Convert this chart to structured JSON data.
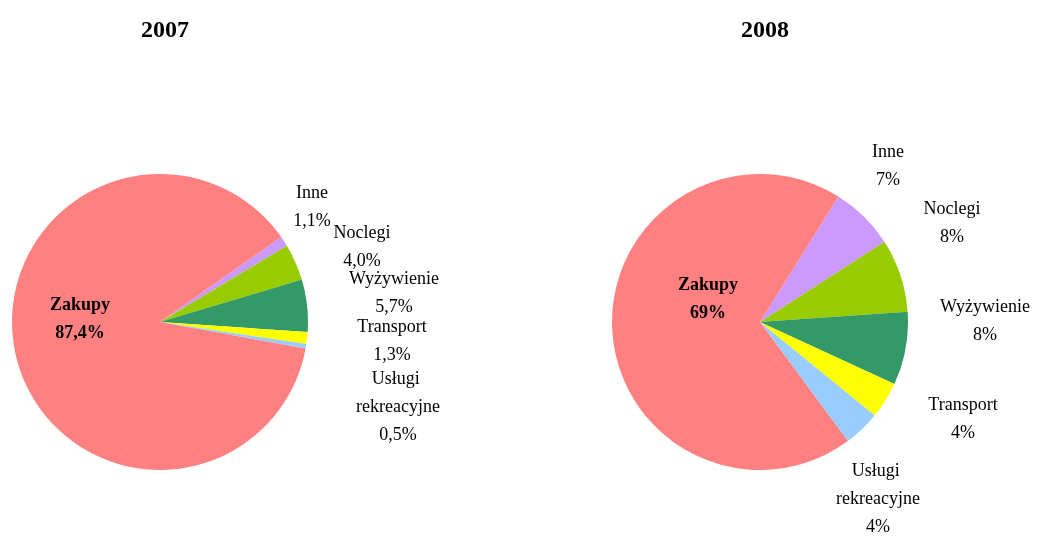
{
  "chart_data": [
    {
      "type": "pie",
      "title": "2007",
      "categories": [
        "Inne",
        "Noclegi",
        "Wyżywienie",
        "Transport",
        "Usługi rekreacyjne",
        "Zakupy"
      ],
      "values": [
        1.1,
        4.0,
        5.7,
        1.3,
        0.5,
        87.4
      ],
      "value_labels": [
        "1,1%",
        "4,0%",
        "5,7%",
        "1,3%",
        "0,5%",
        "87,4%"
      ],
      "colors": [
        "#cc99ff",
        "#99cc00",
        "#339966",
        "#ffff00",
        "#99ccff",
        "#ff8080"
      ]
    },
    {
      "type": "pie",
      "title": "2008",
      "categories": [
        "Inne",
        "Noclegi",
        "Wyżywienie",
        "Transport",
        "Usługi rekreacyjne",
        "Zakupy"
      ],
      "values": [
        7,
        8,
        8,
        4,
        4,
        69
      ],
      "value_labels": [
        "7%",
        "8%",
        "8%",
        "4%",
        "4%",
        "69%"
      ],
      "colors": [
        "#cc99ff",
        "#99cc00",
        "#339966",
        "#ffff00",
        "#99ccff",
        "#ff8080"
      ]
    }
  ]
}
